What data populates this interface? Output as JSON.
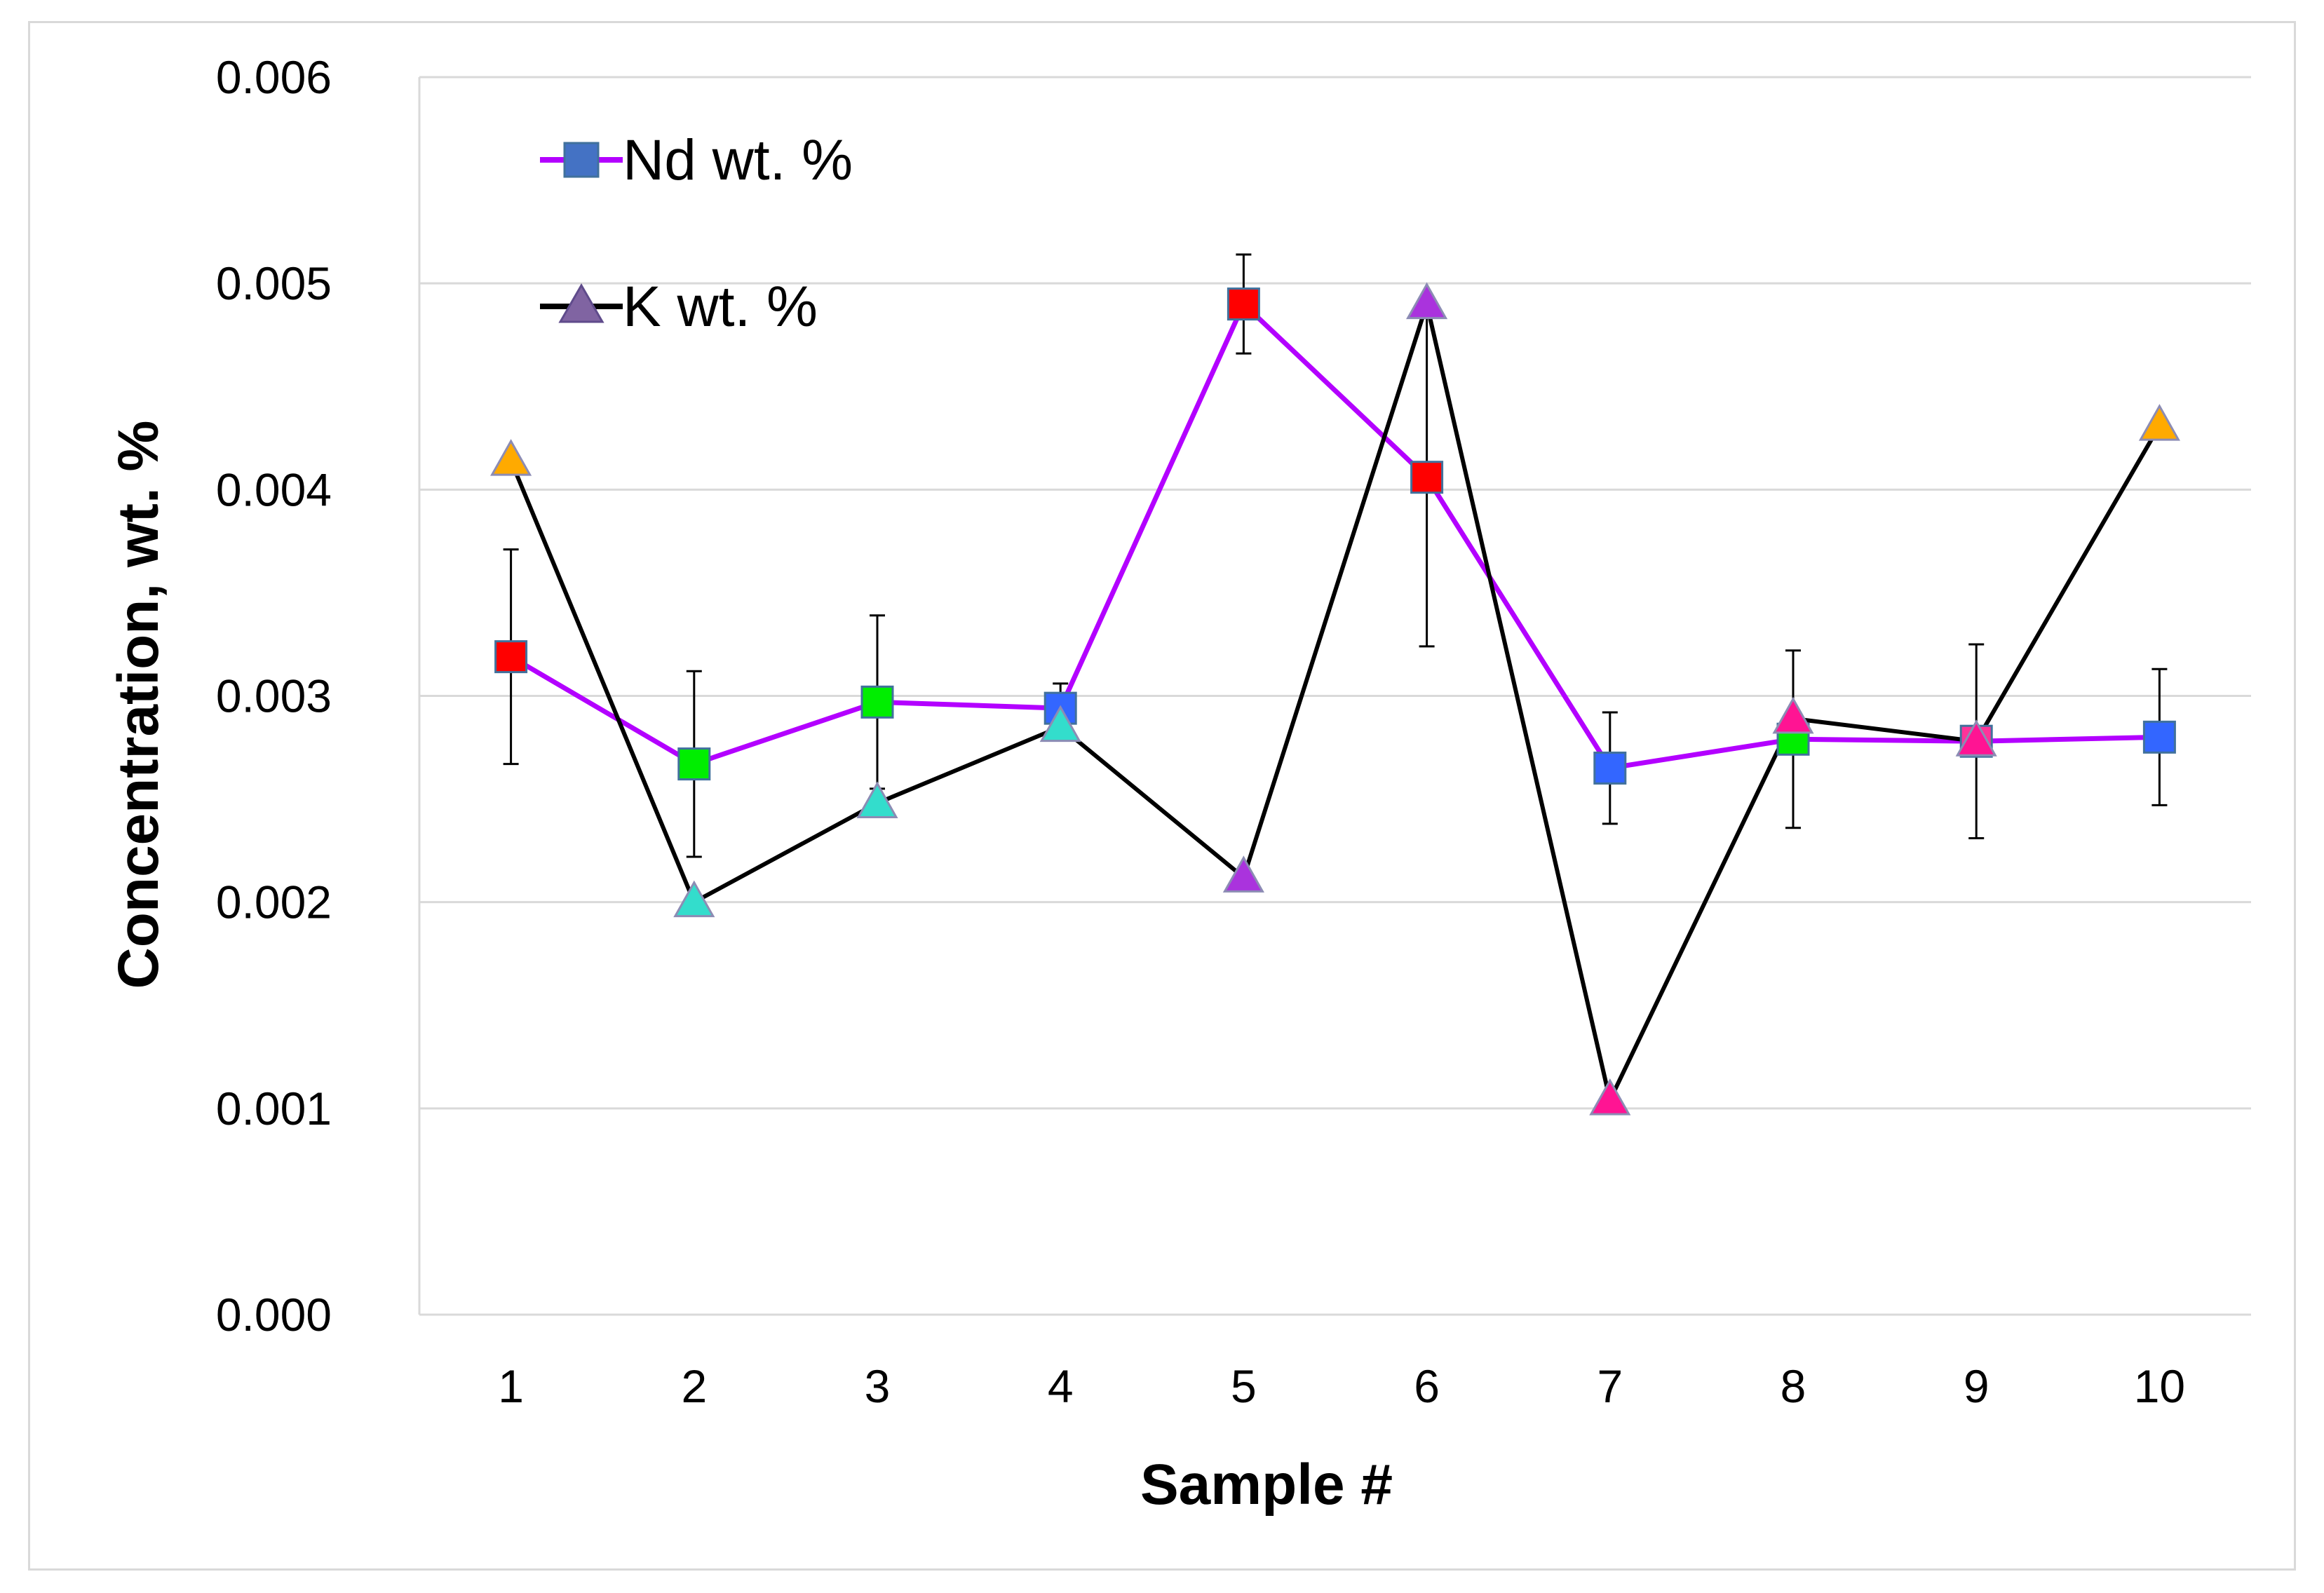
{
  "chart_data": {
    "type": "line",
    "title": "",
    "xlabel": "Sample #",
    "ylabel": "Concentration, wt. %",
    "categories": [
      "1",
      "2",
      "3",
      "4",
      "5",
      "6",
      "7",
      "8",
      "9",
      "10"
    ],
    "ylim": [
      0,
      0.006
    ],
    "yticks": [
      "0.000",
      "0.001",
      "0.002",
      "0.003",
      "0.004",
      "0.005",
      "0.006"
    ],
    "grid": true,
    "legend_position": "top-left",
    "series": [
      {
        "name": "Nd wt. %",
        "marker": "square",
        "line_color": "#b300ff",
        "legend_marker_color": "#4472c4",
        "values": [
          0.00319,
          0.00267,
          0.00297,
          0.00294,
          0.0049,
          0.00406,
          0.00265,
          0.00279,
          0.00278,
          0.0028
        ],
        "error": [
          0.00052,
          0.00045,
          0.00042,
          0.00012,
          0.00024,
          0.00082,
          0.00027,
          0.00043,
          0.00047,
          0.00033
        ],
        "marker_colors": [
          "#ff0000",
          "#00ee00",
          "#00ee00",
          "#3366ff",
          "#ff0000",
          "#ff0000",
          "#3366ff",
          "#00ee00",
          "#ff3399",
          "#3366ff"
        ]
      },
      {
        "name": "K wt. %",
        "marker": "triangle",
        "line_color": "#000000",
        "legend_marker_color": "#8064a2",
        "values": [
          0.00414,
          0.002,
          0.00248,
          0.00285,
          0.00212,
          0.0049,
          0.00104,
          0.00289,
          0.00278,
          0.00431
        ],
        "marker_colors": [
          "#ffaa00",
          "#33ddcc",
          "#33ddcc",
          "#33ddcc",
          "#aa33dd",
          "#aa33dd",
          "#ff1493",
          "#ff1493",
          "#ff1493",
          "#ffaa00"
        ]
      }
    ]
  }
}
